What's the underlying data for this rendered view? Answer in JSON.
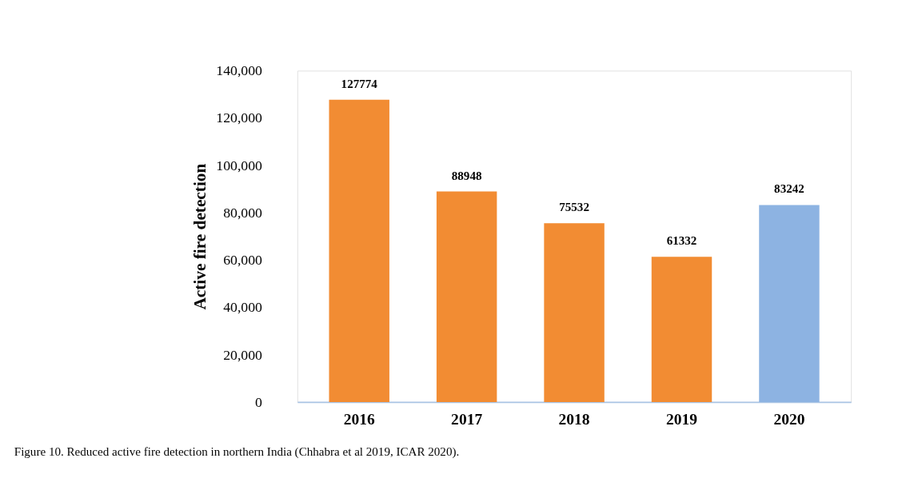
{
  "chart_data": {
    "type": "bar",
    "ylabel": "Active fire detection",
    "categories": [
      "2016",
      "2017",
      "2018",
      "2019",
      "2020"
    ],
    "values": [
      127774,
      88948,
      75532,
      61332,
      83242
    ],
    "colors": [
      "#f28c33",
      "#f28c33",
      "#f28c33",
      "#f28c33",
      "#8db3e2"
    ],
    "ylim": [
      0,
      140000
    ],
    "yticks": [
      0,
      {
        "value": 20000,
        "label": "20,000"
      },
      {
        "value": 40000,
        "label": "40,000"
      },
      {
        "value": 60000,
        "label": "60,000"
      },
      {
        "value": 80000,
        "label": "80,000"
      },
      {
        "value": 100000,
        "label": "100,000"
      },
      {
        "value": 120000,
        "label": "120,000"
      },
      {
        "value": 140000,
        "label": "140,000"
      }
    ],
    "grid": false,
    "legend": false,
    "data_labels": true,
    "annotations": [
      "Figure 10. Reduced active fire detection in northern India (Chhabra et al 2019, ICAR 2020)."
    ]
  }
}
